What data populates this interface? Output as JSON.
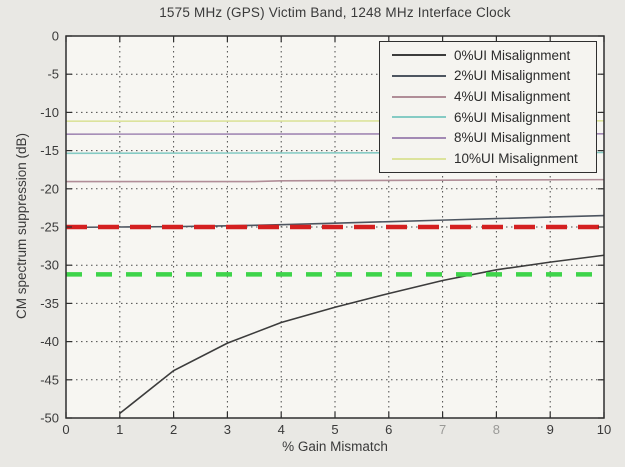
{
  "title": "1575 MHz (GPS) Victim Band, 1248 MHz Interface Clock",
  "chart_data": {
    "type": "line",
    "title": "1575 MHz (GPS) Victim Band, 1248 MHz Interface Clock",
    "xlabel": "% Gain Mismatch",
    "ylabel": "CM spectrum suppression (dB)",
    "xlim": [
      0,
      10
    ],
    "ylim": [
      -50,
      0
    ],
    "xticks": [
      0,
      1,
      2,
      3,
      4,
      5,
      6,
      7,
      8,
      9,
      10
    ],
    "yticks": [
      0,
      -5,
      -10,
      -15,
      -20,
      -25,
      -30,
      -35,
      -40,
      -45,
      -50
    ],
    "xticks_faded": [
      7,
      8
    ],
    "grid": true,
    "grid_style": "dotted",
    "legend_position": "top-right",
    "series": [
      {
        "name": "0%UI Misalignment",
        "color": "#3c3c3c",
        "x": [
          1,
          2,
          3,
          4,
          5,
          6,
          7,
          8,
          9,
          10
        ],
        "y": [
          -49.4,
          -43.8,
          -40.2,
          -37.5,
          -35.5,
          -33.7,
          -32.0,
          -30.6,
          -29.6,
          -28.7
        ]
      },
      {
        "name": "2%UI Misalignment",
        "color": "#4d5560",
        "x": [
          0,
          1,
          2,
          3,
          4,
          5,
          6,
          7,
          8,
          9,
          10
        ],
        "y": [
          -25.05,
          -25.0,
          -24.95,
          -24.85,
          -24.7,
          -24.5,
          -24.3,
          -24.1,
          -23.9,
          -23.7,
          -23.5
        ]
      },
      {
        "name": "4%UI Misalignment",
        "color": "#b08d97",
        "x": [
          0,
          3.5,
          4,
          10
        ],
        "y": [
          -19.05,
          -19.05,
          -18.95,
          -18.8
        ]
      },
      {
        "name": "6%UI Misalignment",
        "color": "#85cbc4",
        "x": [
          0,
          10
        ],
        "y": [
          -15.35,
          -15.25
        ]
      },
      {
        "name": "8%UI Misalignment",
        "color": "#a289b4",
        "x": [
          0,
          10
        ],
        "y": [
          -12.85,
          -12.8
        ]
      },
      {
        "name": "10%UI Misalignment",
        "color": "#dce39c",
        "x": [
          0,
          10
        ],
        "y": [
          -11.15,
          -11.1
        ]
      }
    ],
    "annotations": [
      {
        "name": "red-limit-line",
        "type": "hline",
        "y": -25,
        "color": "#d42020",
        "style": "thick-dashed"
      },
      {
        "name": "green-limit-line",
        "type": "hline",
        "y": -31.2,
        "color": "#3ed44a",
        "style": "thick-dashed"
      }
    ]
  },
  "colors": {
    "figure_background": "#e9e8e4",
    "plot_background": "#f7f6f2",
    "grid": "#4a4a4a",
    "frame": "#2f2f2f",
    "text": "#3a3a3a"
  }
}
